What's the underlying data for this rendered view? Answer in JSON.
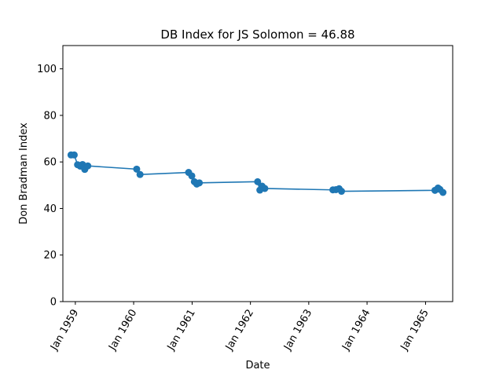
{
  "chart_data": {
    "type": "line",
    "title": "DB Index for JS Solomon = 46.88",
    "xlabel": "Date",
    "ylabel": "Don Bradman Index",
    "ylim": [
      0,
      110
    ],
    "yticks": [
      0,
      20,
      40,
      60,
      80,
      100
    ],
    "xlim": [
      "1958-10-15",
      "1965-06-20"
    ],
    "xticks": [
      {
        "date": "1959-01-01",
        "label": "Jan 1959"
      },
      {
        "date": "1960-01-01",
        "label": "Jan 1960"
      },
      {
        "date": "1961-01-01",
        "label": "Jan 1961"
      },
      {
        "date": "1962-01-01",
        "label": "Jan 1962"
      },
      {
        "date": "1963-01-01",
        "label": "Jan 1963"
      },
      {
        "date": "1964-01-01",
        "label": "Jan 1964"
      },
      {
        "date": "1965-01-01",
        "label": "Jan 1965"
      }
    ],
    "grid": false,
    "color": "#1f77b4",
    "series": [
      {
        "points": [
          {
            "x": "1958-12-05",
            "y": 63.0
          },
          {
            "x": "1958-12-25",
            "y": 63.0
          },
          {
            "x": "1959-01-15",
            "y": 58.8
          },
          {
            "x": "1959-02-01",
            "y": 58.2
          },
          {
            "x": "1959-02-15",
            "y": 58.9
          },
          {
            "x": "1959-03-01",
            "y": 56.8
          },
          {
            "x": "1959-03-20",
            "y": 58.3
          },
          {
            "x": "1960-01-20",
            "y": 56.9
          },
          {
            "x": "1960-02-10",
            "y": 54.6
          },
          {
            "x": "1960-12-10",
            "y": 55.5
          },
          {
            "x": "1960-12-30",
            "y": 54.0
          },
          {
            "x": "1961-01-15",
            "y": 51.5
          },
          {
            "x": "1961-01-30",
            "y": 50.5
          },
          {
            "x": "1961-02-15",
            "y": 51.0
          },
          {
            "x": "1962-02-15",
            "y": 51.5
          },
          {
            "x": "1962-03-01",
            "y": 47.9
          },
          {
            "x": "1962-03-15",
            "y": 49.6
          },
          {
            "x": "1962-04-01",
            "y": 48.6
          },
          {
            "x": "1963-06-01",
            "y": 48.0
          },
          {
            "x": "1963-06-20",
            "y": 48.1
          },
          {
            "x": "1963-07-10",
            "y": 48.5
          },
          {
            "x": "1963-07-25",
            "y": 47.4
          },
          {
            "x": "1965-03-01",
            "y": 47.8
          },
          {
            "x": "1965-03-20",
            "y": 48.8
          },
          {
            "x": "1965-04-01",
            "y": 48.2
          },
          {
            "x": "1965-04-20",
            "y": 46.9
          }
        ]
      }
    ]
  }
}
